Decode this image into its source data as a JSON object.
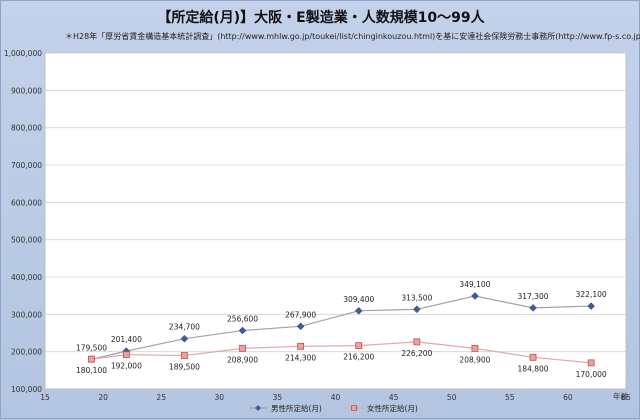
{
  "chart_data": {
    "type": "line",
    "title": "【所定給(月)】大阪・E製造業・人数規模10～99人",
    "subtitle": "＊H28年「厚労省賃金構造基本統計調査」(http://www.mhlw.go.jp/toukei/list/chinginkouzou.html)を基に安達社会保険労務士事務所(http://www.fp-s.co.jp)が作成",
    "xlabel": "年齢",
    "ylabel": "",
    "xlim": [
      15,
      65
    ],
    "ylim": [
      100000,
      1000000
    ],
    "x_ticks": [
      "15",
      "20",
      "25",
      "30",
      "35",
      "40",
      "45",
      "50",
      "55",
      "60",
      "65"
    ],
    "y_ticks": [
      "100,000",
      "200,000",
      "300,000",
      "400,000",
      "500,000",
      "600,000",
      "700,000",
      "800,000",
      "900,000",
      "1,000,000"
    ],
    "grid": true,
    "legend_position": "bottom",
    "series": [
      {
        "name": "男性所定給(月)",
        "color": "#3f5f94",
        "marker": "diamond",
        "x": [
          19,
          22,
          27,
          32,
          37,
          42,
          47,
          52,
          57,
          62
        ],
        "values": [
          179500,
          201400,
          234700,
          256600,
          267900,
          309400,
          313500,
          349100,
          317300,
          322100
        ],
        "labels": [
          "179,500",
          "201,400",
          "234,700",
          "256,600",
          "267,900",
          "309,400",
          "313,500",
          "349,100",
          "317,300",
          "322,100"
        ]
      },
      {
        "name": "女性所定給(月)",
        "color": "#c0504d",
        "marker": "square",
        "x": [
          19,
          22,
          27,
          32,
          37,
          42,
          47,
          52,
          57,
          62
        ],
        "values": [
          180100,
          192000,
          189500,
          208900,
          214300,
          216200,
          226200,
          208900,
          184800,
          170000
        ],
        "labels": [
          "180,100",
          "192,000",
          "189,500",
          "208,900",
          "214,300",
          "216,200",
          "226,200",
          "208,900",
          "184,800",
          "170,000"
        ]
      }
    ]
  }
}
